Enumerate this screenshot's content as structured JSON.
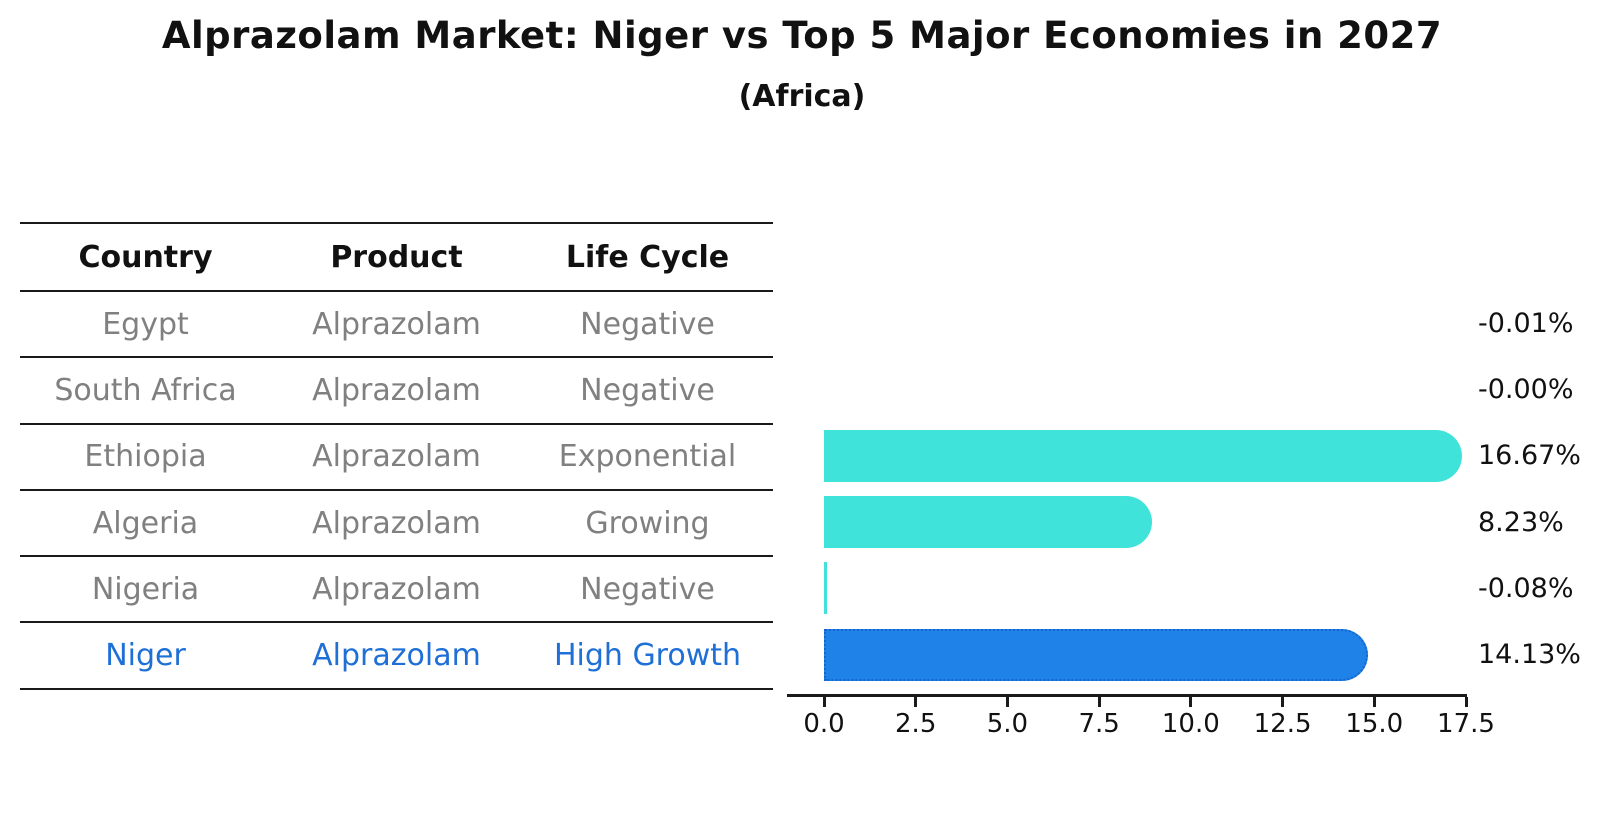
{
  "header": {
    "title": "Alprazolam Market: Niger vs Top 5 Major Economies in 2027",
    "subtitle": "(Africa)"
  },
  "table": {
    "columns": [
      "Country",
      "Product",
      "Life Cycle"
    ],
    "rows": [
      {
        "country": "Egypt",
        "product": "Alprazolam",
        "life_cycle": "Negative",
        "highlight": false
      },
      {
        "country": "South Africa",
        "product": "Alprazolam",
        "life_cycle": "Negative",
        "highlight": false
      },
      {
        "country": "Ethiopia",
        "product": "Alprazolam",
        "life_cycle": "Exponential",
        "highlight": false
      },
      {
        "country": "Algeria",
        "product": "Alprazolam",
        "life_cycle": "Growing",
        "highlight": false
      },
      {
        "country": "Nigeria",
        "product": "Alprazolam",
        "life_cycle": "Negative",
        "highlight": false
      },
      {
        "country": "Niger",
        "product": "Alprazolam",
        "life_cycle": "High Growth",
        "highlight": true
      }
    ]
  },
  "chart_data": {
    "type": "bar",
    "orientation": "horizontal",
    "title": "Alprazolam Market: Niger vs Top 5 Major Economies in 2027 (Africa)",
    "categories": [
      "Egypt",
      "South Africa",
      "Ethiopia",
      "Algeria",
      "Nigeria",
      "Niger"
    ],
    "values": [
      -0.01,
      -0.0,
      16.67,
      8.23,
      -0.08,
      14.13
    ],
    "value_labels": [
      "-0.01%",
      "-0.00%",
      "16.67%",
      "8.23%",
      "-0.08%",
      "14.13%"
    ],
    "unit": "percent",
    "xlim": [
      -1,
      17.5
    ],
    "x_ticks": [
      "0.0",
      "2.5",
      "5.0",
      "7.5",
      "10.0",
      "12.5",
      "15.0",
      "17.5"
    ],
    "grid": false,
    "legend": "none",
    "highlight_index": 5,
    "bar_color": "#3FE3DA",
    "highlight_color": "#1F82E8",
    "highlight_edge_color": "#1565CF"
  },
  "colors": {
    "text_primary": "#111111",
    "text_muted": "#808080",
    "highlight_text": "#1E6FD6",
    "rule": "#1a1a1a"
  }
}
